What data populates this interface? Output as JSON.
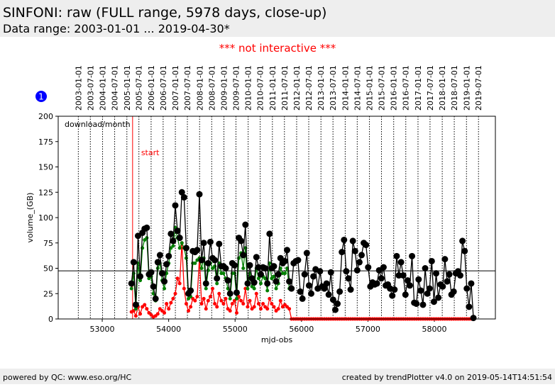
{
  "header": {
    "title": "SINFONI: raw (FULL range, 5978 days, close-up)",
    "subtitle": "Data range: 2003-01-01 ... 2019-04-30*",
    "notice": "*** not interactive ***",
    "badge": "1"
  },
  "footer": {
    "left": "powered by QC: www.eso.org/HC",
    "right": "created by trendPlotter v4.0 on 2019-05-14T14:51:54"
  },
  "chart_data": {
    "type": "scatter",
    "xlabel": "mjd-obs",
    "ylabel": "volume_(GB)",
    "annotation": "download/month",
    "xlim": [
      52337,
      58919
    ],
    "ylim": [
      0,
      200
    ],
    "xticks": [
      53000,
      54000,
      55000,
      56000,
      57000,
      58000
    ],
    "yticks": [
      0,
      25,
      50,
      75,
      100,
      125,
      150,
      175,
      200
    ],
    "x2ticks": [
      {
        "value": 52640,
        "label": "2003-01-01"
      },
      {
        "value": 52821,
        "label": "2003-07-01"
      },
      {
        "value": 53005,
        "label": "2004-01-01"
      },
      {
        "value": 53187,
        "label": "2004-07-01"
      },
      {
        "value": 53371,
        "label": "2005-01-01"
      },
      {
        "value": 53552,
        "label": "2005-07-01"
      },
      {
        "value": 53736,
        "label": "2006-01-01"
      },
      {
        "value": 53917,
        "label": "2006-07-01"
      },
      {
        "value": 54101,
        "label": "2007-01-01"
      },
      {
        "value": 54282,
        "label": "2007-07-01"
      },
      {
        "value": 54466,
        "label": "2008-01-01"
      },
      {
        "value": 54648,
        "label": "2008-07-01"
      },
      {
        "value": 54832,
        "label": "2009-01-01"
      },
      {
        "value": 55013,
        "label": "2009-07-01"
      },
      {
        "value": 55197,
        "label": "2010-01-01"
      },
      {
        "value": 55378,
        "label": "2010-07-01"
      },
      {
        "value": 55562,
        "label": "2011-01-01"
      },
      {
        "value": 55743,
        "label": "2011-07-01"
      },
      {
        "value": 55927,
        "label": "2012-01-01"
      },
      {
        "value": 56109,
        "label": "2012-07-01"
      },
      {
        "value": 56293,
        "label": "2013-01-01"
      },
      {
        "value": 56474,
        "label": "2013-07-01"
      },
      {
        "value": 56658,
        "label": "2014-01-01"
      },
      {
        "value": 56839,
        "label": "2014-07-01"
      },
      {
        "value": 57023,
        "label": "2015-01-01"
      },
      {
        "value": 57204,
        "label": "2015-07-01"
      },
      {
        "value": 57388,
        "label": "2016-01-01"
      },
      {
        "value": 57570,
        "label": "2016-07-01"
      },
      {
        "value": 57754,
        "label": "2017-01-01"
      },
      {
        "value": 57935,
        "label": "2017-07-01"
      },
      {
        "value": 58119,
        "label": "2018-01-01"
      },
      {
        "value": 58300,
        "label": "2018-07-01"
      },
      {
        "value": 58484,
        "label": "2019-01-01"
      },
      {
        "value": 58665,
        "label": "2019-07-01"
      }
    ],
    "hline": 47.5,
    "start": {
      "x": 53457,
      "label": "start",
      "color": "#ff0000"
    },
    "x": [
      53440,
      53473,
      53506,
      53539,
      53572,
      53605,
      53638,
      53671,
      53704,
      53737,
      53770,
      53803,
      53836,
      53869,
      53902,
      53935,
      53968,
      54001,
      54034,
      54067,
      54100,
      54133,
      54166,
      54199,
      54232,
      54265,
      54298,
      54331,
      54364,
      54397,
      54430,
      54463,
      54496,
      54529,
      54562,
      54595,
      54628,
      54661,
      54694,
      54727,
      54760,
      54793,
      54826,
      54859,
      54892,
      54925,
      54958,
      54991,
      55024,
      55057,
      55090,
      55123,
      55156,
      55189,
      55222,
      55255,
      55288,
      55321,
      55354,
      55387,
      55420,
      55453,
      55486,
      55519,
      55552,
      55585,
      55618,
      55651,
      55684,
      55717,
      55750,
      55783,
      55816,
      55849,
      55882,
      55915,
      55948,
      55981,
      56014,
      56047,
      56080,
      56113,
      56146,
      56179,
      56212,
      56245,
      56278,
      56311,
      56344,
      56377,
      56410,
      56443,
      56476,
      56509,
      56542,
      56575,
      56608,
      56641,
      56674,
      56707,
      56740,
      56773,
      56806,
      56839,
      56872,
      56905,
      56938,
      56971,
      57004,
      57037,
      57070,
      57103,
      57136,
      57169,
      57202,
      57235,
      57268,
      57301,
      57334,
      57367,
      57400,
      57433,
      57466,
      57499,
      57532,
      57565,
      57598,
      57631,
      57664,
      57697,
      57730,
      57763,
      57796,
      57829,
      57862,
      57895,
      57928,
      57961,
      57994,
      58027,
      58060,
      58093,
      58126,
      58159,
      58192,
      58225,
      58258,
      58291,
      58324,
      58357,
      58390,
      58423,
      58456,
      58489,
      58522,
      58555,
      58588
    ],
    "series": [
      {
        "color": "#ff0000",
        "values": [
          7,
          8,
          3,
          12,
          5,
          12,
          14,
          10,
          6,
          4,
          2,
          3,
          5,
          10,
          8,
          6,
          15,
          10,
          16,
          20,
          25,
          40,
          35,
          75,
          30,
          15,
          8,
          12,
          20,
          18,
          22,
          60,
          15,
          20,
          10,
          18,
          22,
          30,
          15,
          12,
          25,
          18,
          15,
          20,
          10,
          8,
          15,
          18,
          6,
          22,
          18,
          15,
          30,
          12,
          18,
          10,
          12,
          25,
          15,
          10,
          15,
          12,
          10,
          20,
          15,
          12,
          8,
          10,
          18,
          12,
          14,
          12,
          10,
          0,
          0,
          0,
          0,
          0,
          0,
          0,
          0,
          0,
          0,
          0,
          0,
          0,
          0,
          0,
          0,
          0,
          0,
          0,
          0,
          0,
          0,
          0,
          0,
          0,
          0,
          0,
          0,
          0,
          0,
          0,
          0,
          0,
          0,
          0,
          0,
          0,
          0,
          0,
          0,
          0,
          0,
          0,
          0,
          0,
          0,
          0,
          0,
          0,
          0,
          0,
          0,
          0,
          0,
          0,
          0,
          0,
          0,
          0,
          0,
          0,
          0,
          0,
          0,
          0,
          0,
          0,
          0,
          0,
          0,
          0,
          0,
          0,
          0,
          0,
          0,
          0,
          0,
          0,
          0,
          0,
          0,
          0,
          0
        ]
      },
      {
        "color": "#008000",
        "values": [
          30,
          45,
          10,
          55,
          38,
          70,
          78,
          80,
          40,
          42,
          25,
          18,
          50,
          55,
          38,
          30,
          45,
          55,
          70,
          72,
          90,
          80,
          70,
          75,
          70,
          60,
          20,
          22,
          55,
          55,
          58,
          60,
          50,
          60,
          30,
          48,
          55,
          50,
          52,
          35,
          55,
          45,
          45,
          40,
          30,
          20,
          45,
          45,
          20,
          60,
          65,
          50,
          70,
          30,
          45,
          32,
          30,
          50,
          40,
          35,
          42,
          40,
          28,
          55,
          40,
          42,
          30,
          35,
          50,
          45,
          45,
          50,
          30,
          null,
          null,
          null,
          null,
          null,
          null,
          null,
          null,
          null,
          null,
          null,
          null,
          null,
          null,
          null,
          null,
          null,
          null,
          null,
          null,
          null,
          null,
          null,
          null,
          null,
          null,
          null,
          null,
          null,
          null,
          null,
          null,
          null,
          null,
          null,
          null,
          null,
          null,
          null,
          null,
          null,
          null,
          null,
          null,
          null,
          null,
          null,
          null,
          null,
          null,
          null,
          null,
          null,
          null,
          null,
          null,
          null,
          null,
          null,
          null,
          null,
          null,
          null,
          null,
          null,
          null,
          null,
          null,
          null,
          null,
          null,
          null,
          null,
          null,
          null,
          null,
          null,
          null,
          null,
          null,
          null,
          null,
          null
        ]
      },
      {
        "color": "#000000",
        "values": [
          35,
          56,
          14,
          82,
          42,
          85,
          89,
          90,
          44,
          46,
          32,
          20,
          56,
          63,
          45,
          37,
          54,
          62,
          84,
          77,
          112,
          87,
          80,
          125,
          120,
          70,
          25,
          28,
          67,
          66,
          68,
          123,
          58,
          75,
          35,
          55,
          76,
          60,
          58,
          40,
          74,
          52,
          52,
          50,
          38,
          25,
          55,
          53,
          26,
          80,
          77,
          63,
          93,
          35,
          53,
          40,
          36,
          61,
          51,
          44,
          51,
          50,
          35,
          84,
          50,
          52,
          37,
          44,
          60,
          55,
          57,
          68,
          37,
          30,
          55,
          57,
          58,
          27,
          20,
          44,
          65,
          33,
          25,
          42,
          49,
          30,
          47,
          32,
          30,
          35,
          24,
          46,
          19,
          9,
          15,
          27,
          66,
          78,
          47,
          40,
          29,
          77,
          67,
          48,
          56,
          63,
          75,
          73,
          51,
          32,
          36,
          34,
          35,
          48,
          40,
          51,
          33,
          34,
          30,
          23,
          29,
          62,
          43,
          56,
          43,
          24,
          38,
          33,
          62,
          16,
          15,
          39,
          28,
          14,
          50,
          25,
          30,
          57,
          17,
          45,
          21,
          34,
          32,
          59,
          37,
          44,
          24,
          27,
          45,
          47,
          43,
          77,
          67,
          30,
          12,
          35,
          1
        ]
      }
    ]
  }
}
